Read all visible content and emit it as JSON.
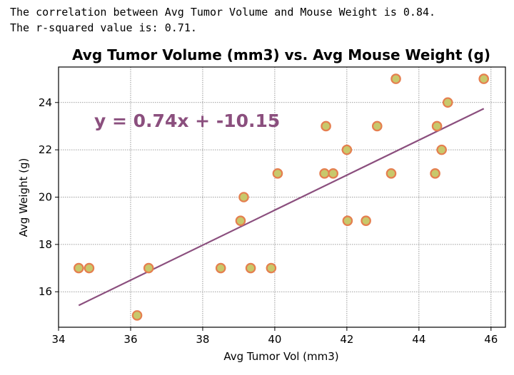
{
  "console": {
    "line1": "The correlation between Avg Tumor Volume and Mouse Weight is 0.84.",
    "line2": "The r-squared value is: 0.71."
  },
  "colors": {
    "point_fill": "#c8c86b",
    "point_edge": "#e57f4f",
    "line": "#8b4f7e",
    "equation": "#8b4f7e",
    "grid": "#808080"
  },
  "chart_data": {
    "type": "scatter",
    "title": "Avg Tumor Volume (mm3) vs. Avg Mouse Weight (g)",
    "xlabel": "Avg Tumor Vol (mm3)",
    "ylabel": "Avg Weight (g)",
    "xlim": [
      34,
      46.4
    ],
    "ylim": [
      14.5,
      25.5
    ],
    "xticks": [
      34,
      36,
      38,
      40,
      42,
      44,
      46
    ],
    "yticks": [
      16,
      18,
      20,
      22,
      24
    ],
    "grid": true,
    "equation": "y = 0.74x + -10.15",
    "regression": {
      "slope": 0.74,
      "intercept": -10.15,
      "x_range": [
        34.56,
        45.8
      ]
    },
    "points": [
      {
        "x": 34.56,
        "y": 17
      },
      {
        "x": 34.85,
        "y": 17
      },
      {
        "x": 36.18,
        "y": 15
      },
      {
        "x": 36.5,
        "y": 17
      },
      {
        "x": 38.5,
        "y": 17
      },
      {
        "x": 39.05,
        "y": 19
      },
      {
        "x": 39.14,
        "y": 20
      },
      {
        "x": 39.33,
        "y": 17
      },
      {
        "x": 39.9,
        "y": 17
      },
      {
        "x": 40.08,
        "y": 21
      },
      {
        "x": 41.38,
        "y": 21
      },
      {
        "x": 41.42,
        "y": 23
      },
      {
        "x": 41.62,
        "y": 21
      },
      {
        "x": 42.0,
        "y": 22
      },
      {
        "x": 42.02,
        "y": 19
      },
      {
        "x": 42.53,
        "y": 19
      },
      {
        "x": 42.84,
        "y": 23
      },
      {
        "x": 43.23,
        "y": 21
      },
      {
        "x": 43.36,
        "y": 25
      },
      {
        "x": 44.45,
        "y": 21
      },
      {
        "x": 44.5,
        "y": 23
      },
      {
        "x": 44.63,
        "y": 22
      },
      {
        "x": 44.8,
        "y": 24
      },
      {
        "x": 45.8,
        "y": 25
      }
    ]
  }
}
